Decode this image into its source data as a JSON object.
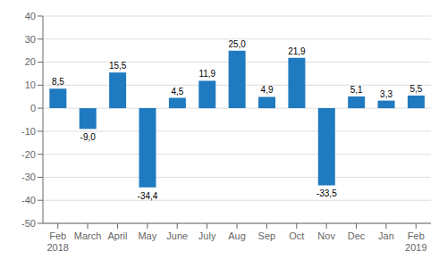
{
  "chart_data": {
    "type": "bar",
    "categories": [
      "Feb\n2018",
      "March",
      "April",
      "May",
      "June",
      "July",
      "Aug",
      "Sep",
      "Oct",
      "Nov",
      "Dec",
      "Jan",
      "Feb\n2019"
    ],
    "values": [
      8.5,
      -9.0,
      15.5,
      -34.4,
      4.5,
      11.9,
      25.0,
      4.9,
      21.9,
      -33.5,
      5.1,
      3.3,
      5.5
    ],
    "value_labels": [
      "8,5",
      "-9,0",
      "15,5",
      "-34,4",
      "4,5",
      "11,9",
      "25,0",
      "4,9",
      "21,9",
      "-33,5",
      "5,1",
      "3,3",
      "5,5"
    ],
    "color": "#1f7abf",
    "ylim": [
      -50,
      40
    ],
    "yticks": [
      -50,
      -40,
      -30,
      -20,
      -10,
      0,
      10,
      20,
      30,
      40
    ],
    "grid": true,
    "data_labels": true
  }
}
